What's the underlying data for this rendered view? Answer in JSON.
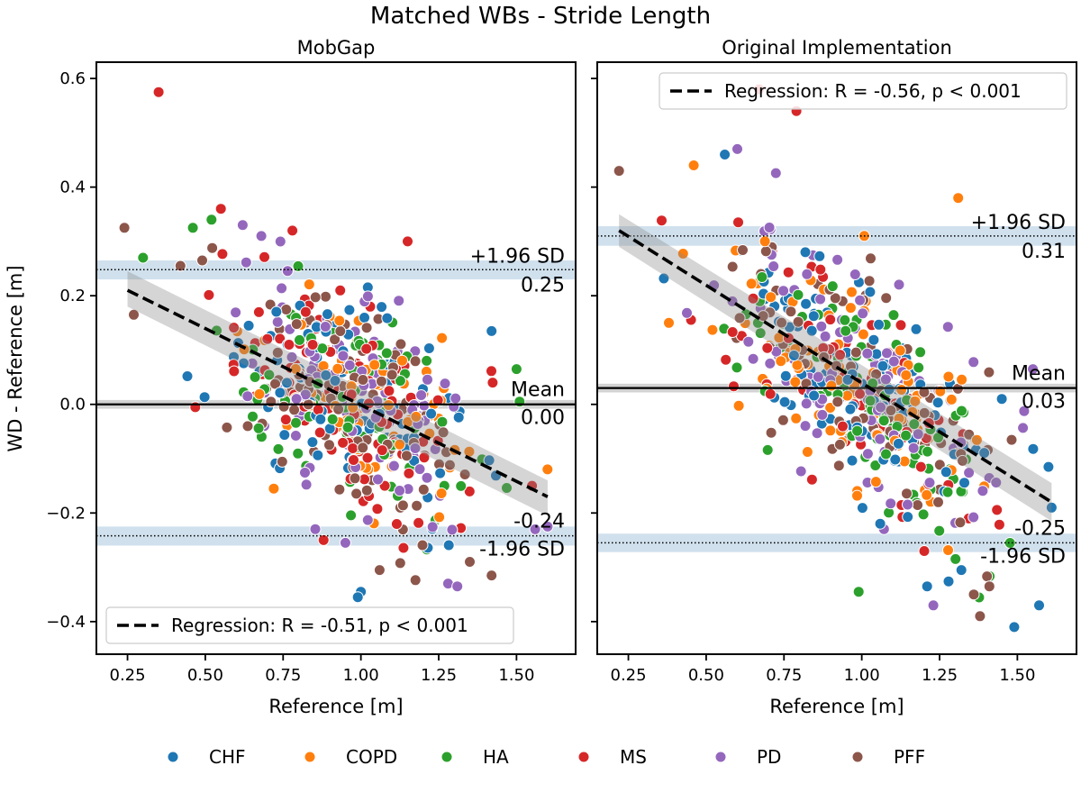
{
  "figure": {
    "suptitle": "Matched WBs - Stride Length",
    "shared_ylabel": "WD - Reference [m]"
  },
  "legend": {
    "placement": "bottom-center",
    "groups": [
      {
        "name": "CHF",
        "color": "#1f77b4"
      },
      {
        "name": "COPD",
        "color": "#ff7f0e"
      },
      {
        "name": "HA",
        "color": "#2ca02c"
      },
      {
        "name": "MS",
        "color": "#d62728"
      },
      {
        "name": "PD",
        "color": "#9467bd"
      },
      {
        "name": "PFF",
        "color": "#8c564b"
      }
    ]
  },
  "chart_data": [
    {
      "type": "scatter",
      "title": "MobGap",
      "xlabel": "Reference [m]",
      "ylabel": "WD - Reference [m]",
      "xlim": [
        0.15,
        1.69
      ],
      "ylim": [
        -0.46,
        0.63
      ],
      "xticks": [
        0.25,
        0.5,
        0.75,
        1.0,
        1.25,
        1.5
      ],
      "xtick_labels": [
        "0.25",
        "0.50",
        "0.75",
        "1.00",
        "1.25",
        "1.50"
      ],
      "yticks": [
        -0.4,
        -0.2,
        0.0,
        0.2,
        0.4,
        0.6
      ],
      "ytick_labels": [
        "−0.4",
        "−0.2",
        "0.0",
        "0.2",
        "0.4",
        "0.6"
      ],
      "mean": 0.0,
      "mean_band": [
        -0.008,
        0.008
      ],
      "upper_loa": 0.248,
      "upper_band": [
        0.23,
        0.265
      ],
      "lower_loa": -0.242,
      "lower_band": [
        -0.26,
        -0.225
      ],
      "mean_label": "Mean",
      "mean_value_label": "0.00",
      "upper_label": "+1.96 SD",
      "upper_value_label": "0.25",
      "lower_label": "-1.96 SD",
      "lower_value_label": "-0.24",
      "regression": {
        "x": [
          0.25,
          1.6
        ],
        "y": [
          0.21,
          -0.17
        ],
        "ci_start": [
          0.18,
          0.245
        ],
        "ci_end": [
          -0.205,
          -0.14
        ],
        "label": "Regression: R = -0.51, p < 0.001",
        "legend_placement": "lower-left"
      },
      "cloud": {
        "count": 560,
        "x_mean": 0.98,
        "x_sd": 0.19,
        "slope": -0.28,
        "intercept": 0.28,
        "noise_sd": 0.09,
        "seed": 11
      },
      "points": [
        {
          "x": 0.35,
          "y": 0.575,
          "g": "MS"
        },
        {
          "x": 0.24,
          "y": 0.325,
          "g": "PFF"
        },
        {
          "x": 0.3,
          "y": 0.27,
          "g": "HA"
        },
        {
          "x": 0.46,
          "y": 0.325,
          "g": "HA"
        },
        {
          "x": 0.52,
          "y": 0.34,
          "g": "HA"
        },
        {
          "x": 0.55,
          "y": 0.36,
          "g": "MS"
        },
        {
          "x": 0.62,
          "y": 0.33,
          "g": "PD"
        },
        {
          "x": 0.68,
          "y": 0.31,
          "g": "PD"
        },
        {
          "x": 0.78,
          "y": 0.32,
          "g": "MS"
        },
        {
          "x": 1.15,
          "y": 0.3,
          "g": "MS"
        },
        {
          "x": 1.42,
          "y": 0.135,
          "g": "CHF"
        },
        {
          "x": 1.5,
          "y": 0.065,
          "g": "HA"
        },
        {
          "x": 1.51,
          "y": 0.005,
          "g": "HA"
        },
        {
          "x": 1.0,
          "y": -0.345,
          "g": "CHF"
        },
        {
          "x": 0.99,
          "y": -0.355,
          "g": "CHF"
        },
        {
          "x": 1.06,
          "y": -0.305,
          "g": "PFF"
        },
        {
          "x": 1.28,
          "y": -0.33,
          "g": "PD"
        },
        {
          "x": 1.31,
          "y": -0.335,
          "g": "PD"
        },
        {
          "x": 1.42,
          "y": -0.315,
          "g": "PFF"
        },
        {
          "x": 1.35,
          "y": -0.29,
          "g": "PFF"
        },
        {
          "x": 1.56,
          "y": -0.23,
          "g": "PD"
        },
        {
          "x": 1.6,
          "y": -0.225,
          "g": "PD"
        },
        {
          "x": 1.55,
          "y": -0.15,
          "g": "MS"
        },
        {
          "x": 0.72,
          "y": -0.155,
          "g": "COPD"
        },
        {
          "x": 0.88,
          "y": -0.25,
          "g": "MS"
        },
        {
          "x": 0.95,
          "y": -0.255,
          "g": "PD"
        },
        {
          "x": 0.27,
          "y": 0.165,
          "g": "PFF"
        },
        {
          "x": 0.42,
          "y": 0.255,
          "g": "PFF"
        },
        {
          "x": 0.49,
          "y": 0.265,
          "g": "PFF"
        }
      ]
    },
    {
      "type": "scatter",
      "title": "Original Implementation",
      "xlabel": "Reference [m]",
      "ylabel": "",
      "xlim": [
        0.15,
        1.69
      ],
      "ylim": [
        -0.46,
        0.63
      ],
      "xticks": [
        0.25,
        0.5,
        0.75,
        1.0,
        1.25,
        1.5
      ],
      "xtick_labels": [
        "0.25",
        "0.50",
        "0.75",
        "1.00",
        "1.25",
        "1.50"
      ],
      "yticks": [
        -0.4,
        -0.2,
        0.0,
        0.2,
        0.4,
        0.6
      ],
      "ytick_labels": [],
      "mean": 0.03,
      "mean_band": [
        0.022,
        0.038
      ],
      "upper_loa": 0.31,
      "upper_band": [
        0.292,
        0.328
      ],
      "lower_loa": -0.255,
      "lower_band": [
        -0.272,
        -0.238
      ],
      "mean_label": "Mean",
      "mean_value_label": "0.03",
      "upper_label": "+1.96 SD",
      "upper_value_label": "0.31",
      "lower_label": "-1.96 SD",
      "lower_value_label": "-0.25",
      "regression": {
        "x": [
          0.22,
          1.61
        ],
        "y": [
          0.32,
          -0.18
        ],
        "ci_start": [
          0.29,
          0.35
        ],
        "ci_end": [
          -0.215,
          -0.145
        ],
        "label": "Regression: R = -0.56, p < 0.001",
        "legend_placement": "upper-right"
      },
      "cloud": {
        "count": 560,
        "x_mean": 1.0,
        "x_sd": 0.21,
        "slope": -0.36,
        "intercept": 0.39,
        "noise_sd": 0.1,
        "seed": 29
      },
      "points": [
        {
          "x": 0.22,
          "y": 0.43,
          "g": "PFF"
        },
        {
          "x": 0.46,
          "y": 0.44,
          "g": "COPD"
        },
        {
          "x": 0.56,
          "y": 0.46,
          "g": "CHF"
        },
        {
          "x": 0.6,
          "y": 0.47,
          "g": "PD"
        },
        {
          "x": 0.67,
          "y": 0.58,
          "g": "MS"
        },
        {
          "x": 0.79,
          "y": 0.54,
          "g": "MS"
        },
        {
          "x": 1.31,
          "y": 0.38,
          "g": "COPD"
        },
        {
          "x": 0.38,
          "y": 0.15,
          "g": "COPD"
        },
        {
          "x": 0.99,
          "y": -0.345,
          "g": "HA"
        },
        {
          "x": 1.23,
          "y": -0.37,
          "g": "PD"
        },
        {
          "x": 1.36,
          "y": -0.35,
          "g": "PFF"
        },
        {
          "x": 1.38,
          "y": -0.39,
          "g": "PFF"
        },
        {
          "x": 1.49,
          "y": -0.41,
          "g": "CHF"
        },
        {
          "x": 1.57,
          "y": -0.37,
          "g": "CHF"
        },
        {
          "x": 1.6,
          "y": -0.115,
          "g": "CHF"
        },
        {
          "x": 1.61,
          "y": -0.19,
          "g": "CHF"
        },
        {
          "x": 1.55,
          "y": 0.065,
          "g": "PD"
        },
        {
          "x": 1.45,
          "y": 0.01,
          "g": "CHF"
        },
        {
          "x": 1.41,
          "y": -0.335,
          "g": "PFF"
        },
        {
          "x": 1.32,
          "y": -0.305,
          "g": "CHF"
        },
        {
          "x": 1.21,
          "y": -0.335,
          "g": "CHF"
        }
      ]
    }
  ]
}
